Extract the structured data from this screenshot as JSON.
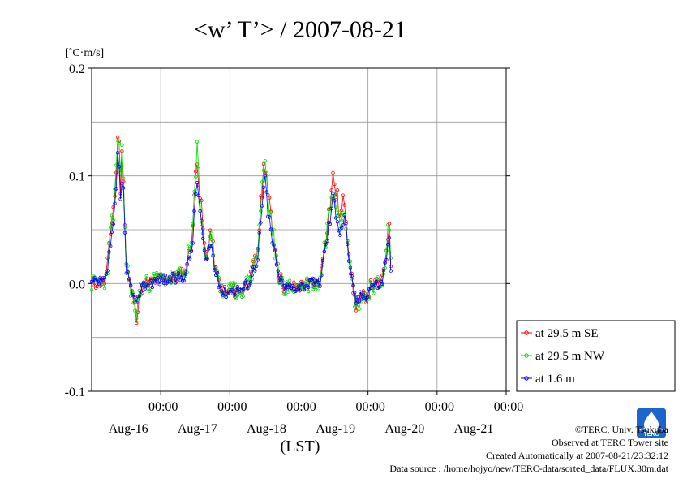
{
  "chart_data": {
    "type": "line",
    "title": "<w’ T’> / 2007-08-21",
    "unit_label": "[˚C·m/s]",
    "xlabel": "(LST)",
    "ylim": [
      -0.1,
      0.2
    ],
    "yticks": [
      {
        "v": 0.2,
        "label": "0.2"
      },
      {
        "v": 0.1,
        "label": "0.1"
      },
      {
        "v": 0.0,
        "label": "0.0"
      },
      {
        "v": -0.1,
        "label": "-0.1"
      }
    ],
    "xlim": [
      0,
      6
    ],
    "xticks": [
      {
        "x": 1,
        "time": "00:00",
        "date": "Aug-16"
      },
      {
        "x": 2,
        "time": "00:00",
        "date": "Aug-17"
      },
      {
        "x": 3,
        "time": "00:00",
        "date": "Aug-18"
      },
      {
        "x": 4,
        "time": "00:00",
        "date": "Aug-19"
      },
      {
        "x": 5,
        "time": "00:00",
        "date": "Aug-20"
      },
      {
        "x": 6,
        "time": "00:00",
        "date": "Aug-21"
      }
    ],
    "anchors": [
      [
        0.0,
        0.0
      ],
      [
        0.2,
        0.002
      ],
      [
        0.25,
        0.03
      ],
      [
        0.3,
        0.065
      ],
      [
        0.35,
        0.09
      ],
      [
        0.38,
        0.15
      ],
      [
        0.42,
        0.09
      ],
      [
        0.45,
        0.13
      ],
      [
        0.48,
        0.06
      ],
      [
        0.5,
        0.02
      ],
      [
        0.55,
        0.0
      ],
      [
        0.62,
        -0.02
      ],
      [
        0.65,
        -0.03
      ],
      [
        0.7,
        -0.005
      ],
      [
        0.8,
        0.0
      ],
      [
        1.0,
        0.005
      ],
      [
        1.2,
        0.005
      ],
      [
        1.35,
        0.01
      ],
      [
        1.45,
        0.04
      ],
      [
        1.5,
        0.09
      ],
      [
        1.52,
        0.13
      ],
      [
        1.56,
        0.09
      ],
      [
        1.6,
        0.06
      ],
      [
        1.65,
        0.02
      ],
      [
        1.72,
        0.05
      ],
      [
        1.8,
        0.01
      ],
      [
        1.9,
        -0.01
      ],
      [
        2.2,
        -0.005
      ],
      [
        2.3,
        0.005
      ],
      [
        2.4,
        0.03
      ],
      [
        2.48,
        0.1
      ],
      [
        2.52,
        0.12
      ],
      [
        2.55,
        0.08
      ],
      [
        2.6,
        0.06
      ],
      [
        2.7,
        0.01
      ],
      [
        2.8,
        -0.005
      ],
      [
        3.0,
        -0.003
      ],
      [
        3.15,
        0.0
      ],
      [
        3.3,
        0.0
      ],
      [
        3.4,
        0.05
      ],
      [
        3.5,
        0.1
      ],
      [
        3.55,
        0.08
      ],
      [
        3.6,
        0.06
      ],
      [
        3.66,
        0.08
      ],
      [
        3.7,
        0.05
      ],
      [
        3.75,
        0.01
      ],
      [
        3.82,
        -0.02
      ],
      [
        3.9,
        -0.015
      ],
      [
        4.0,
        -0.01
      ],
      [
        4.05,
        0.0
      ],
      [
        4.1,
        -0.002
      ],
      [
        4.2,
        0.0
      ],
      [
        4.28,
        0.04
      ],
      [
        4.3,
        0.06
      ],
      [
        4.33,
        0.02
      ]
    ],
    "series": [
      {
        "name": "at 29.5 m SE",
        "color": "#ff0000",
        "amp": 1.0,
        "noise": 0.006,
        "seed": 11
      },
      {
        "name": "at 29.5 m NW",
        "color": "#00dd00",
        "amp": 0.97,
        "noise": 0.008,
        "seed": 23
      },
      {
        "name": "at 1.6 m",
        "color": "#0000ff",
        "amp": 0.8,
        "noise": 0.005,
        "seed": 37
      }
    ],
    "legend_position": "right",
    "grid": true
  },
  "footer": {
    "copyright": "©TERC, Univ. Tsukuba",
    "observed": "Observed at TERC Tower site",
    "created": "Created Automatically at 2007-08-21/23:32:12",
    "source": "Data source : /home/hojyo/new/TERC-data/sorted_data/FLUX.30m.dat"
  },
  "logo": {
    "icon": "terc-logo-icon",
    "text": "TERC",
    "color": "#1a66cc"
  }
}
